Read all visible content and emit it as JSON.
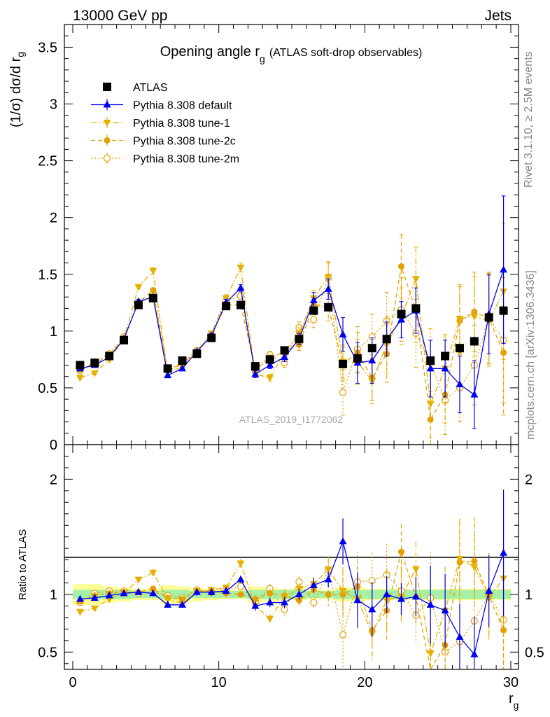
{
  "header": {
    "left": "13000 GeV pp",
    "right": "Jets"
  },
  "side_labels": {
    "rivet": "Rivet 3.1.10, ≥ 2.5M events",
    "mcplots": "mcplots.cern.ch [arXiv:1306.3436]"
  },
  "analysis_id": "ATLAS_2019_I1772062",
  "chart_data": [
    {
      "type": "scatter",
      "title_main": "Opening angle r",
      "title_sub": "g",
      "title_rest": "(ATLAS soft-drop observables)",
      "xlabel": "r",
      "xlabel_sub": "g",
      "ylabel": "(1/σ) dσ/d r",
      "ylabel_sub": "g",
      "xlim": [
        0,
        30
      ],
      "ylim": [
        0,
        3.7
      ],
      "yticks": [
        "0",
        "0.5",
        "1",
        "1.5",
        "2",
        "2.5",
        "3",
        "3.5"
      ],
      "yticks_values": [
        0,
        0.5,
        1,
        1.5,
        2,
        2.5,
        3,
        3.5
      ],
      "legend_position": "top-left",
      "x": [
        0.5,
        1.5,
        2.5,
        3.5,
        4.5,
        5.5,
        6.5,
        7.5,
        8.5,
        9.5,
        10.5,
        11.5,
        12.5,
        13.5,
        14.5,
        15.5,
        16.5,
        17.5,
        18.5,
        19.5,
        20.5,
        21.5,
        22.5,
        23.5,
        24.5,
        25.5,
        26.5,
        27.5,
        28.5,
        29.5
      ],
      "series": [
        {
          "name": "ATLAS",
          "color": "#000000",
          "marker": "square",
          "line": "none",
          "values": [
            0.7,
            0.72,
            0.78,
            0.92,
            1.23,
            1.29,
            0.67,
            0.74,
            0.8,
            0.94,
            1.22,
            1.23,
            0.69,
            0.75,
            0.83,
            0.93,
            1.18,
            1.21,
            0.71,
            0.76,
            0.85,
            0.93,
            1.15,
            1.2,
            0.74,
            0.78,
            0.85,
            0.91,
            1.12,
            1.18
          ],
          "errors": [
            0.02,
            0.02,
            0.02,
            0.02,
            0.02,
            0.02,
            0.02,
            0.02,
            0.02,
            0.02,
            0.02,
            0.02,
            0.02,
            0.02,
            0.02,
            0.03,
            0.03,
            0.03,
            0.03,
            0.03,
            0.03,
            0.04,
            0.04,
            0.04,
            0.04,
            0.04,
            0.04,
            0.04,
            0.05,
            0.05
          ]
        },
        {
          "name": "Pythia 8.308 default",
          "color": "#0000ee",
          "marker": "triangle-up",
          "line": "solid",
          "values": [
            0.67,
            0.7,
            0.77,
            0.93,
            1.26,
            1.3,
            0.61,
            0.67,
            0.82,
            0.96,
            1.25,
            1.38,
            0.62,
            0.7,
            0.77,
            0.93,
            1.27,
            1.37,
            0.97,
            0.72,
            0.74,
            0.93,
            1.1,
            1.18,
            0.67,
            0.67,
            0.53,
            0.44,
            1.15,
            1.54
          ],
          "errors": [
            0.01,
            0.01,
            0.01,
            0.01,
            0.02,
            0.02,
            0.01,
            0.01,
            0.02,
            0.02,
            0.03,
            0.03,
            0.03,
            0.03,
            0.04,
            0.05,
            0.07,
            0.09,
            0.15,
            0.18,
            0.2,
            0.15,
            0.16,
            0.2,
            0.25,
            0.25,
            0.25,
            0.3,
            0.35,
            0.65
          ]
        },
        {
          "name": "Pythia 8.308 tune-1",
          "color": "#e6b000",
          "marker": "triangle-down",
          "line": "dashdot",
          "values": [
            0.59,
            0.63,
            0.75,
            0.93,
            1.39,
            1.53,
            0.64,
            0.68,
            0.82,
            0.98,
            1.29,
            1.56,
            0.62,
            0.59,
            0.81,
            0.98,
            1.29,
            1.48,
            0.73,
            0.73,
            0.56,
            0.88,
            1.13,
            1.46,
            0.36,
            0.67,
            1.11,
            1.13,
            1.09,
            1.35
          ],
          "errors": [
            0.01,
            0.01,
            0.01,
            0.01,
            0.02,
            0.03,
            0.01,
            0.01,
            0.02,
            0.02,
            0.03,
            0.04,
            0.03,
            0.03,
            0.04,
            0.05,
            0.07,
            0.12,
            0.15,
            0.2,
            0.2,
            0.25,
            0.25,
            0.28,
            0.3,
            0.3,
            0.3,
            0.35,
            0.4,
            0.6
          ]
        },
        {
          "name": "Pythia 8.308 tune-2c",
          "color": "#e69f00",
          "marker": "circle",
          "line": "dashed",
          "values": [
            0.66,
            0.71,
            0.79,
            0.94,
            1.25,
            1.36,
            0.65,
            0.71,
            0.82,
            0.97,
            1.23,
            1.23,
            0.66,
            0.76,
            0.82,
            0.88,
            1.23,
            1.21,
            0.71,
            0.81,
            0.59,
            0.8,
            1.57,
            1.18,
            0.22,
            0.44,
            1.09,
            1.17,
            1.11,
            0.81
          ],
          "errors": [
            0.01,
            0.01,
            0.01,
            0.01,
            0.02,
            0.02,
            0.01,
            0.01,
            0.02,
            0.02,
            0.03,
            0.03,
            0.03,
            0.03,
            0.04,
            0.05,
            0.07,
            0.12,
            0.15,
            0.18,
            0.2,
            0.25,
            0.28,
            0.28,
            0.25,
            0.25,
            0.3,
            0.35,
            0.4,
            0.55
          ]
        },
        {
          "name": "Pythia 8.308 tune-2m",
          "color": "#e69f00",
          "marker": "open-circle",
          "line": "dotted",
          "values": [
            0.65,
            0.73,
            0.8,
            0.95,
            1.24,
            1.32,
            0.66,
            0.72,
            0.83,
            0.96,
            1.27,
            1.31,
            0.65,
            0.79,
            0.72,
            1.03,
            1.1,
            1.47,
            0.46,
            0.84,
            0.95,
            1.09,
            1.19,
            0.98,
            0.72,
            0.39,
            0.5,
            0.7,
            1.12,
            0.92
          ],
          "errors": [
            0.01,
            0.01,
            0.01,
            0.01,
            0.02,
            0.02,
            0.01,
            0.01,
            0.02,
            0.02,
            0.03,
            0.03,
            0.03,
            0.03,
            0.04,
            0.05,
            0.07,
            0.14,
            0.2,
            0.2,
            0.2,
            0.25,
            0.28,
            0.3,
            0.3,
            0.3,
            0.3,
            0.35,
            0.4,
            0.55
          ]
        }
      ]
    },
    {
      "type": "scatter",
      "ylabel": "Ratio to ATLAS",
      "xlim": [
        0,
        30
      ],
      "ylim": [
        0.35,
        2.3
      ],
      "yticks": [
        "0.5",
        "1",
        "2"
      ],
      "yticks_values": [
        0.5,
        1,
        2
      ],
      "xticks": [
        "0",
        "10",
        "20",
        "30"
      ],
      "xticks_values": [
        0,
        10,
        20,
        30
      ],
      "band_inner_halfwidth": [
        0.04,
        0.04,
        0.04,
        0.04,
        0.03,
        0.03,
        0.04,
        0.04,
        0.03,
        0.03,
        0.03,
        0.03,
        0.04,
        0.04,
        0.04,
        0.04,
        0.03,
        0.03,
        0.04,
        0.04,
        0.04,
        0.04,
        0.04,
        0.04,
        0.04,
        0.04,
        0.04,
        0.04,
        0.04,
        0.04
      ],
      "band_outer_halfwidth": [
        0.09,
        0.09,
        0.07,
        0.06,
        0.05,
        0.05,
        0.08,
        0.07,
        0.06,
        0.05,
        0.04,
        0.04,
        0.07,
        0.06,
        0.05,
        0.05,
        0.04,
        0.04,
        0.06,
        0.06,
        0.05,
        0.05,
        0.05,
        0.04,
        0.05,
        0.05,
        0.05,
        0.05,
        0.05,
        0.05
      ],
      "series": [
        {
          "name": "Pythia 8.308 default",
          "values": [
            0.96,
            0.97,
            0.99,
            1.01,
            1.02,
            1.01,
            0.91,
            0.91,
            1.02,
            1.02,
            1.03,
            1.13,
            0.9,
            0.93,
            0.93,
            1.0,
            1.08,
            1.13,
            1.46,
            0.95,
            0.87,
            1.0,
            0.96,
            0.98,
            0.91,
            0.86,
            0.63,
            0.48,
            1.03,
            1.36
          ],
          "errors": [
            0.02,
            0.02,
            0.02,
            0.02,
            0.02,
            0.02,
            0.02,
            0.02,
            0.03,
            0.03,
            0.03,
            0.03,
            0.04,
            0.04,
            0.05,
            0.05,
            0.06,
            0.07,
            0.2,
            0.24,
            0.24,
            0.16,
            0.14,
            0.17,
            0.34,
            0.32,
            0.29,
            0.33,
            0.31,
            0.55
          ]
        },
        {
          "name": "Pythia 8.308 tune-1",
          "values": [
            0.85,
            0.88,
            0.96,
            1.01,
            1.13,
            1.19,
            0.96,
            0.92,
            1.02,
            1.04,
            1.06,
            1.27,
            0.9,
            0.79,
            0.98,
            1.05,
            1.09,
            1.22,
            1.03,
            0.96,
            0.66,
            0.95,
            0.98,
            1.22,
            0.49,
            0.86,
            1.31,
            1.24,
            0.97,
            1.14
          ],
          "errors": [
            0.02,
            0.02,
            0.02,
            0.02,
            0.02,
            0.03,
            0.02,
            0.02,
            0.03,
            0.03,
            0.03,
            0.04,
            0.04,
            0.04,
            0.05,
            0.05,
            0.06,
            0.1,
            0.21,
            0.26,
            0.24,
            0.27,
            0.22,
            0.24,
            0.4,
            0.38,
            0.35,
            0.38,
            0.36,
            0.51
          ]
        },
        {
          "name": "Pythia 8.308 tune-2c",
          "values": [
            0.94,
            0.99,
            1.01,
            1.02,
            1.02,
            1.05,
            0.97,
            0.96,
            1.03,
            1.03,
            1.01,
            1.0,
            0.96,
            1.01,
            0.99,
            0.95,
            1.04,
            1.0,
            1.0,
            1.07,
            0.69,
            0.86,
            1.37,
            0.98,
            0.3,
            0.56,
            1.28,
            1.29,
            0.99,
            0.69
          ],
          "errors": [
            0.02,
            0.02,
            0.02,
            0.02,
            0.02,
            0.02,
            0.02,
            0.02,
            0.03,
            0.03,
            0.03,
            0.03,
            0.04,
            0.04,
            0.05,
            0.05,
            0.06,
            0.1,
            0.21,
            0.24,
            0.24,
            0.27,
            0.24,
            0.23,
            0.34,
            0.32,
            0.35,
            0.38,
            0.36,
            0.47
          ]
        },
        {
          "name": "Pythia 8.308 tune-2m",
          "values": [
            0.93,
            1.01,
            1.03,
            1.03,
            1.01,
            1.02,
            0.99,
            0.97,
            1.04,
            1.02,
            1.04,
            1.07,
            0.94,
            1.05,
            0.87,
            1.11,
            0.93,
            1.21,
            0.65,
            1.11,
            1.12,
            1.17,
            1.03,
            0.82,
            0.97,
            0.5,
            0.59,
            0.77,
            1.0,
            0.78
          ],
          "errors": [
            0.02,
            0.02,
            0.02,
            0.02,
            0.02,
            0.02,
            0.02,
            0.02,
            0.03,
            0.03,
            0.03,
            0.03,
            0.04,
            0.04,
            0.05,
            0.05,
            0.06,
            0.12,
            0.28,
            0.26,
            0.24,
            0.27,
            0.24,
            0.25,
            0.4,
            0.38,
            0.35,
            0.38,
            0.36,
            0.47
          ]
        }
      ]
    }
  ]
}
